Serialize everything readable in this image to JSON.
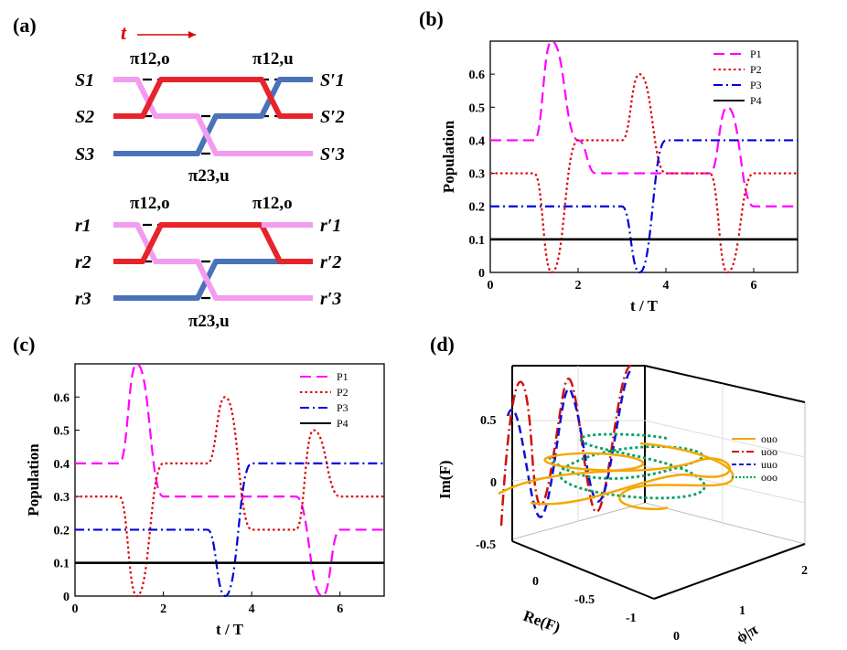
{
  "panels": {
    "a": {
      "label": "(a)",
      "time_label": "t",
      "top": {
        "left_nodes": [
          "S1",
          "S2",
          "S3"
        ],
        "right_nodes": [
          "S′1",
          "S′2",
          "S′3"
        ],
        "pulses": [
          "π12,o",
          "π12,u",
          "π23,u"
        ]
      },
      "bottom": {
        "left_nodes": [
          "r1",
          "r2",
          "r3"
        ],
        "right_nodes": [
          "r′1",
          "r′2",
          "r′3"
        ],
        "pulses": [
          "π12,o",
          "π12,o",
          "π23,u"
        ]
      }
    },
    "b": {
      "label": "(b)"
    },
    "c": {
      "label": "(c)"
    },
    "d": {
      "label": "(d)"
    }
  },
  "chart_data": [
    {
      "panel": "b",
      "type": "line",
      "xlabel": "t / T",
      "ylabel": "Population",
      "xlim": [
        0,
        7
      ],
      "ylim": [
        0,
        0.7
      ],
      "xticks": [
        "0",
        "2",
        "4",
        "6"
      ],
      "yticks": [
        "0",
        "0.1",
        "0.2",
        "0.3",
        "0.4",
        "0.5",
        "0.6"
      ],
      "legend_position": "top-right",
      "series": [
        {
          "name": "P1",
          "color": "#ff00ff",
          "style": "dash",
          "x": [
            0,
            1,
            1.4,
            2,
            2.4,
            5,
            5.4,
            6,
            6.4,
            7
          ],
          "y": [
            0.4,
            0.4,
            0.7,
            0.4,
            0.3,
            0.3,
            0.5,
            0.2,
            0.2,
            0.2
          ],
          "desc": "flat 0.4 to t=1, pulse peaks 0.7 at t≈1.4, flat 0.3 from t≈2 to 5, pulse to 0.5 at t≈5.4, then 0.2"
        },
        {
          "name": "P2",
          "color": "#e00000",
          "style": "dot",
          "x": [
            0,
            1,
            1.4,
            2,
            3,
            3.4,
            4,
            5,
            5.4,
            6,
            7
          ],
          "y": [
            0.3,
            0.3,
            0.0,
            0.4,
            0.4,
            0.6,
            0.3,
            0.3,
            0.0,
            0.3,
            0.3
          ]
        },
        {
          "name": "P3",
          "color": "#0000dd",
          "style": "dashdot",
          "x": [
            0,
            3,
            3.4,
            4,
            7
          ],
          "y": [
            0.2,
            0.2,
            0.0,
            0.4,
            0.4
          ]
        },
        {
          "name": "P4",
          "color": "#000000",
          "style": "solid",
          "x": [
            0,
            7
          ],
          "y": [
            0.1,
            0.1
          ]
        }
      ]
    },
    {
      "panel": "c",
      "type": "line",
      "xlabel": "t / T",
      "ylabel": "Population",
      "xlim": [
        0,
        7
      ],
      "ylim": [
        0,
        0.7
      ],
      "xticks": [
        "0",
        "2",
        "4",
        "6"
      ],
      "yticks": [
        "0",
        "0.1",
        "0.2",
        "0.3",
        "0.4",
        "0.5",
        "0.6"
      ],
      "legend_position": "top-right",
      "series": [
        {
          "name": "P1",
          "color": "#ff00ff",
          "style": "dash",
          "x": [
            0,
            1,
            1.4,
            2,
            5,
            5.6,
            6,
            7
          ],
          "y": [
            0.4,
            0.4,
            0.7,
            0.3,
            0.3,
            0.0,
            0.2,
            0.2
          ]
        },
        {
          "name": "P2",
          "color": "#e00000",
          "style": "dot",
          "x": [
            0,
            1,
            1.4,
            2,
            3,
            3.4,
            4,
            5,
            5.4,
            6,
            7
          ],
          "y": [
            0.3,
            0.3,
            0.0,
            0.4,
            0.4,
            0.6,
            0.2,
            0.2,
            0.5,
            0.3,
            0.3
          ]
        },
        {
          "name": "P3",
          "color": "#0000dd",
          "style": "dashdot",
          "x": [
            0,
            3,
            3.4,
            4,
            7
          ],
          "y": [
            0.2,
            0.2,
            0.0,
            0.4,
            0.4
          ]
        },
        {
          "name": "P4",
          "color": "#000000",
          "style": "solid",
          "x": [
            0,
            7
          ],
          "y": [
            0.1,
            0.1
          ]
        }
      ]
    },
    {
      "panel": "d",
      "type": "line",
      "projection": "3d",
      "xlabel": "Re(F)",
      "ylabel": "ϕ|π",
      "zlabel": "Im(F)",
      "xticks": [
        "0",
        "-0.5",
        "-1"
      ],
      "yticks": [
        "0",
        "1",
        "2"
      ],
      "zticks": [
        "-0.5",
        "0",
        "0.5"
      ],
      "legend_position": "right",
      "series": [
        {
          "name": "ouo",
          "color": "#f5a800",
          "style": "solid"
        },
        {
          "name": "uoo",
          "color": "#d01010",
          "style": "dashdot"
        },
        {
          "name": "uuo",
          "color": "#1010d0",
          "style": "dash"
        },
        {
          "name": "ooo",
          "color": "#00a060",
          "style": "dot"
        }
      ]
    }
  ]
}
